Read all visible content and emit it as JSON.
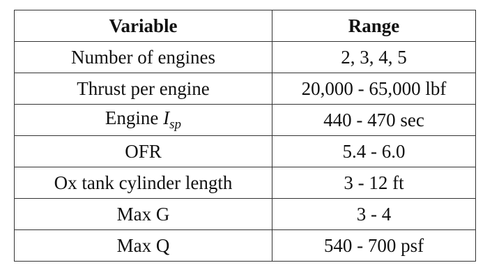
{
  "table": {
    "header": [
      "Variable",
      "Range"
    ],
    "rows": [
      [
        "Number of engines",
        "2, 3, 4, 5"
      ],
      [
        "Thrust per engine",
        "20,000 - 65,000 lbf"
      ],
      [
        {
          "text": "Engine",
          "symbol": "I",
          "subscript": "sp"
        },
        "440 - 470 sec"
      ],
      [
        "OFR",
        "5.4 - 6.0"
      ],
      [
        "Ox tank cylinder length",
        "3 - 12 ft"
      ],
      [
        "Max G",
        "3 - 4"
      ],
      [
        "Max Q",
        "540 - 700 psf"
      ]
    ]
  }
}
